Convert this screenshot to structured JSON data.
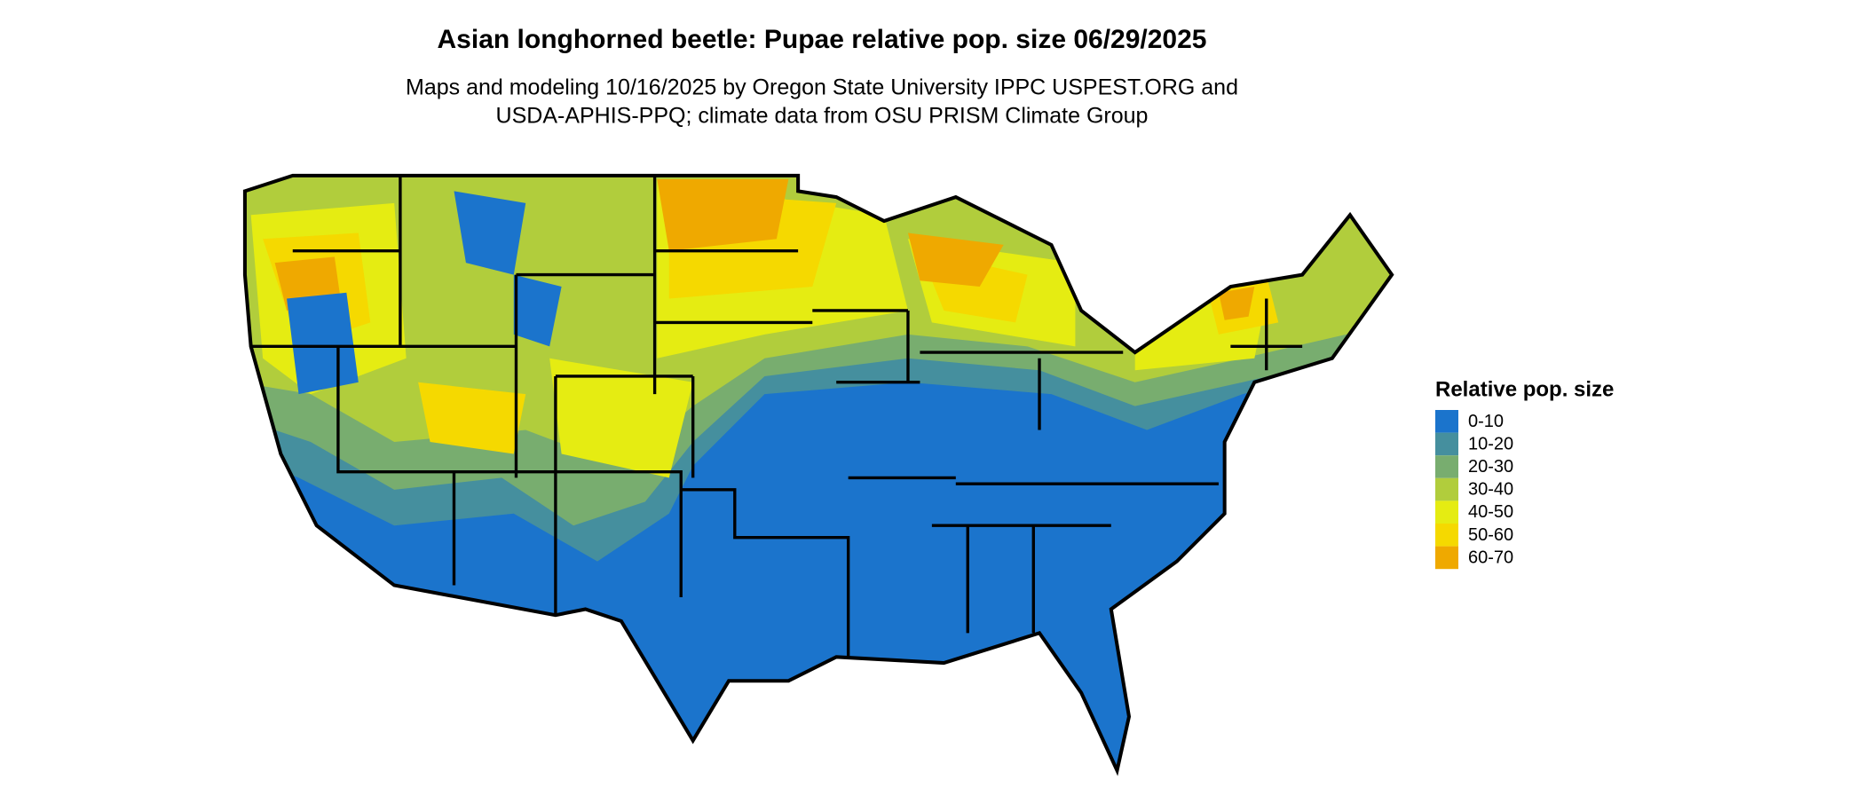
{
  "header": {
    "title": "Asian longhorned beetle: Pupae relative pop. size 06/29/2025",
    "subtitle": [
      "Maps and modeling 10/16/2025 by Oregon State University IPPC USPEST.ORG and",
      "USDA-APHIS-PPQ; climate data from OSU PRISM Climate Group"
    ]
  },
  "legend": {
    "title": "Relative pop. size",
    "items": [
      {
        "label": "0-10",
        "color": "#1b74cc"
      },
      {
        "label": "10-20",
        "color": "#458f9e"
      },
      {
        "label": "20-30",
        "color": "#78ad6f"
      },
      {
        "label": "30-40",
        "color": "#b1cd3c"
      },
      {
        "label": "40-50",
        "color": "#e5ec12"
      },
      {
        "label": "50-60",
        "color": "#f5d900"
      },
      {
        "label": "60-70",
        "color": "#efa900"
      }
    ]
  }
}
